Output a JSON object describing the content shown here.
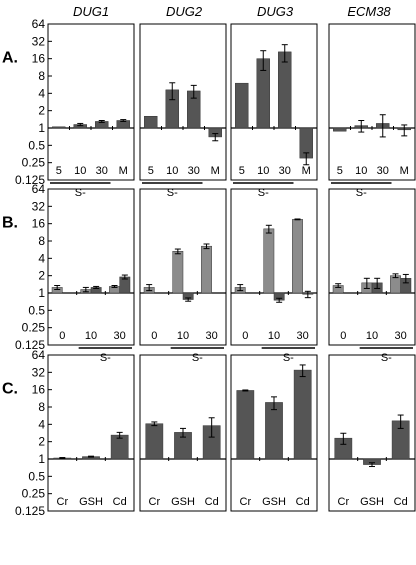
{
  "panel_titles": [
    "DUG1",
    "DUG2",
    "DUG3",
    "ECM38"
  ],
  "row_labels": [
    "A.",
    "B.",
    "C."
  ],
  "y_tick_labels": [
    "64",
    "32",
    "16",
    "8",
    "4",
    "2",
    "1",
    "0.5",
    "0.25",
    "0.125"
  ],
  "colors": {
    "dark_bar": "#555555",
    "light_bar": "#8c8c8c",
    "axis": "#000000"
  },
  "chart_data": [
    {
      "type": "bar",
      "row": "A.",
      "scale": "log2",
      "ylim": [
        0.125,
        64
      ],
      "baseline": 1,
      "categories": [
        "5",
        "10",
        "30",
        "M"
      ],
      "group_label": "S-",
      "group_covers": [
        "5",
        "10",
        "30"
      ],
      "panels": [
        {
          "title": "DUG1",
          "values": [
            1.05,
            1.15,
            1.3,
            1.35
          ],
          "errors": [
            0,
            0.05,
            0.05,
            0.05
          ],
          "shade": [
            "dark",
            "dark",
            "dark",
            "dark"
          ]
        },
        {
          "title": "DUG2",
          "values": [
            1.6,
            4.6,
            4.4,
            0.7
          ],
          "errors": [
            0,
            1.5,
            1.1,
            0.1
          ],
          "shade": [
            "dark",
            "dark",
            "dark",
            "dark"
          ]
        },
        {
          "title": "DUG3",
          "values": [
            6.0,
            16.0,
            21.0,
            0.3
          ],
          "errors": [
            0,
            6.0,
            7.0,
            0.07
          ],
          "shade": [
            "dark",
            "dark",
            "dark",
            "dark"
          ]
        },
        {
          "title": "ECM38",
          "values": [
            0.88,
            1.1,
            1.2,
            0.93
          ],
          "errors": [
            0,
            0.25,
            0.5,
            0.2
          ],
          "shade": [
            "dark",
            "dark",
            "dark",
            "dark"
          ]
        }
      ]
    },
    {
      "type": "bar",
      "row": "B.",
      "scale": "log2",
      "ylim": [
        0.125,
        64
      ],
      "baseline": 1,
      "categories": [
        "0",
        "10",
        "30"
      ],
      "bars_per_category": 2,
      "group_label": "S-",
      "group_covers": [
        "10",
        "30"
      ],
      "panels": [
        {
          "title": "DUG1",
          "values": [
            [
              1.25,
              null
            ],
            [
              1.15,
              1.25
            ],
            [
              1.3,
              1.9
            ]
          ],
          "errors": [
            [
              0.1,
              0
            ],
            [
              0.1,
              0.05
            ],
            [
              0.05,
              0.15
            ]
          ],
          "shade": [
            "light",
            "dark"
          ]
        },
        {
          "title": "DUG2",
          "values": [
            [
              1.25,
              null
            ],
            [
              5.3,
              0.77
            ],
            [
              6.5,
              null
            ]
          ],
          "errors": [
            [
              0.15,
              0
            ],
            [
              0.5,
              0.05
            ],
            [
              0.6,
              0
            ]
          ],
          "shade": [
            "light",
            "dark"
          ]
        },
        {
          "title": "DUG3",
          "values": [
            [
              1.25,
              null
            ],
            [
              13.0,
              0.75
            ],
            [
              19.0,
              0.95
            ]
          ],
          "errors": [
            [
              0.15,
              0
            ],
            [
              2.0,
              0.06
            ],
            [
              0.3,
              0.12
            ]
          ],
          "shade": [
            "light",
            "dark"
          ]
        },
        {
          "title": "ECM38",
          "values": [
            [
              1.35,
              null
            ],
            [
              1.5,
              1.5
            ],
            [
              2.0,
              1.8
            ]
          ],
          "errors": [
            [
              0.1,
              0
            ],
            [
              0.3,
              0.3
            ],
            [
              0.15,
              0.3
            ]
          ],
          "shade": [
            "light",
            "dark"
          ]
        }
      ]
    },
    {
      "type": "bar",
      "row": "C.",
      "scale": "log2",
      "ylim": [
        0.125,
        64
      ],
      "baseline": 1,
      "categories": [
        "Cr",
        "GSH",
        "Cd"
      ],
      "panels": [
        {
          "title": "DUG1",
          "values": [
            1.04,
            1.1,
            2.6
          ],
          "errors": [
            0.02,
            0.02,
            0.3
          ],
          "shade": [
            "dark",
            "dark",
            "dark"
          ]
        },
        {
          "title": "DUG2",
          "values": [
            4.1,
            2.9,
            3.8
          ],
          "errors": [
            0.3,
            0.5,
            1.4
          ],
          "shade": [
            "dark",
            "dark",
            "dark"
          ]
        },
        {
          "title": "DUG3",
          "values": [
            15.5,
            9.6,
            35.0
          ],
          "errors": [
            0.3,
            2.4,
            8.0
          ],
          "shade": [
            "dark",
            "dark",
            "dark"
          ]
        },
        {
          "title": "ECM38",
          "values": [
            2.3,
            0.8,
            4.6
          ],
          "errors": [
            0.5,
            0.06,
            1.2
          ],
          "shade": [
            "dark",
            "dark",
            "dark"
          ]
        }
      ]
    }
  ]
}
